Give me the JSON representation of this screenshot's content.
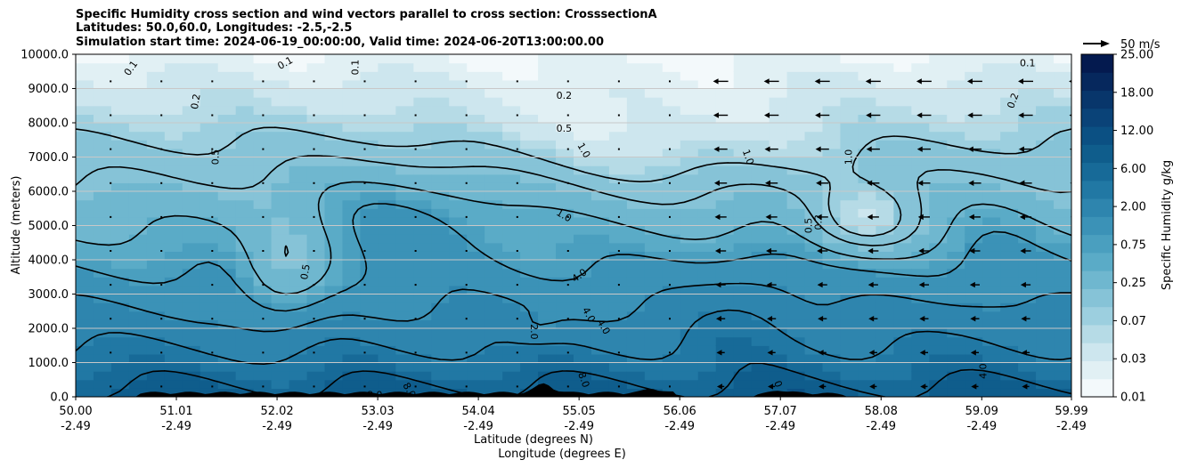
{
  "title": {
    "line1": "Specific Humidity cross section and wind vectors parallel to cross section: CrosssectionA",
    "line2": "Latitudes: 50.0,60.0, Longitudes: -2.5,-2.5",
    "line3": "Simulation start time: 2024-06-19_00:00:00, Valid time: 2024-06-20T13:00:00.00"
  },
  "chart_data": {
    "type": "heatmap",
    "xlabel_line1": "Latitude (degrees N)",
    "xlabel_line2": "Longitude (degrees E)",
    "ylabel": "Altitude (meters)",
    "xlim": [
      50.0,
      59.99
    ],
    "ylim": [
      0,
      10000
    ],
    "x_ticks": [
      {
        "lat": "50.00",
        "lon": "-2.49",
        "value": 50.0
      },
      {
        "lat": "51.01",
        "lon": "-2.49",
        "value": 51.01
      },
      {
        "lat": "52.02",
        "lon": "-2.49",
        "value": 52.02
      },
      {
        "lat": "53.03",
        "lon": "-2.49",
        "value": 53.03
      },
      {
        "lat": "54.04",
        "lon": "-2.49",
        "value": 54.04
      },
      {
        "lat": "55.05",
        "lon": "-2.49",
        "value": 55.05
      },
      {
        "lat": "56.06",
        "lon": "-2.49",
        "value": 56.06
      },
      {
        "lat": "57.07",
        "lon": "-2.49",
        "value": 57.07
      },
      {
        "lat": "58.08",
        "lon": "-2.49",
        "value": 58.08
      },
      {
        "lat": "59.09",
        "lon": "-2.49",
        "value": 59.09
      },
      {
        "lat": "59.99",
        "lon": "-2.49",
        "value": 59.99
      }
    ],
    "y_ticks": [
      "0.0",
      "1000.0",
      "2000.0",
      "3000.0",
      "4000.0",
      "5000.0",
      "6000.0",
      "7000.0",
      "8000.0",
      "9000.0",
      "10000.0"
    ],
    "y_tick_values": [
      0,
      1000,
      2000,
      3000,
      4000,
      5000,
      6000,
      7000,
      8000,
      9000,
      10000
    ],
    "grid": "horizontal",
    "colorbar": {
      "label": "Specific Humidity g/kg",
      "ticks": [
        "0.01",
        "0.03",
        "0.07",
        "0.25",
        "0.75",
        "2.00",
        "6.00",
        "12.00",
        "18.00",
        "25.00"
      ],
      "levels": [
        0.01,
        0.02,
        0.03,
        0.05,
        0.07,
        0.1,
        0.25,
        0.5,
        0.75,
        1.0,
        2.0,
        4.0,
        6.0,
        8.0,
        12.0,
        15.0,
        18.0,
        20.0,
        25.0
      ],
      "colors": [
        "#f3f9fb",
        "#e1f0f4",
        "#cde6ee",
        "#b6dbe6",
        "#9ccfdf",
        "#86c3d7",
        "#6fb7cf",
        "#5aabc7",
        "#4a9fbf",
        "#3b92b7",
        "#2e85ae",
        "#2178a4",
        "#176a98",
        "#0f5d8c",
        "#0b5083",
        "#0a4378",
        "#08366b",
        "#06285d",
        "#041a4f"
      ]
    },
    "contour_levels": [
      0.1,
      0.2,
      0.5,
      1.0,
      2.0,
      4.0,
      8.0
    ],
    "contour_labels": [
      {
        "text": "0.1",
        "lat": 50.55,
        "alt": 9600,
        "angle": -55
      },
      {
        "text": "0.1",
        "lat": 52.1,
        "alt": 9750,
        "angle": -30
      },
      {
        "text": "0.1",
        "lat": 52.8,
        "alt": 9620,
        "angle": -90
      },
      {
        "text": "0.2",
        "lat": 51.2,
        "alt": 8620,
        "angle": -80
      },
      {
        "text": "0.5",
        "lat": 51.4,
        "alt": 7000,
        "angle": -90
      },
      {
        "text": "0.5",
        "lat": 52.3,
        "alt": 3650,
        "angle": -80
      },
      {
        "text": "0.2",
        "lat": 54.9,
        "alt": 8800,
        "angle": 0
      },
      {
        "text": "0.5",
        "lat": 54.9,
        "alt": 7840,
        "angle": 0
      },
      {
        "text": "1.0",
        "lat": 55.1,
        "alt": 7200,
        "angle": 60
      },
      {
        "text": "1.0",
        "lat": 54.9,
        "alt": 5300,
        "angle": 30
      },
      {
        "text": "4.0",
        "lat": 55.05,
        "alt": 3550,
        "angle": -35
      },
      {
        "text": "4.0",
        "lat": 55.15,
        "alt": 2400,
        "angle": 60
      },
      {
        "text": "4.0",
        "lat": 55.3,
        "alt": 2050,
        "angle": 60
      },
      {
        "text": "2.0",
        "lat": 54.6,
        "alt": 1900,
        "angle": 90
      },
      {
        "text": "8.0",
        "lat": 55.1,
        "alt": 500,
        "angle": 70
      },
      {
        "text": "8.0",
        "lat": 53.35,
        "alt": 200,
        "angle": 60
      },
      {
        "text": "8.0",
        "lat": 53.0,
        "alt": 60,
        "angle": 0
      },
      {
        "text": "1.0",
        "lat": 56.75,
        "alt": 7000,
        "angle": 70
      },
      {
        "text": "1.0",
        "lat": 57.75,
        "alt": 7000,
        "angle": -90
      },
      {
        "text": "0.5",
        "lat": 57.35,
        "alt": 5000,
        "angle": -90
      },
      {
        "text": "0.2",
        "lat": 57.45,
        "alt": 5100,
        "angle": -90
      },
      {
        "text": "0.2",
        "lat": 59.4,
        "alt": 8650,
        "angle": -70
      },
      {
        "text": "0.1",
        "lat": 59.55,
        "alt": 9750,
        "angle": 0
      },
      {
        "text": "4.0",
        "lat": 59.1,
        "alt": 750,
        "angle": -90
      },
      {
        "text": "0",
        "lat": 57.05,
        "alt": 380,
        "angle": 70
      }
    ],
    "wind_vectors": {
      "reference_label": "50 m/s",
      "reference_speed_ms": 50,
      "direction": "southward (toward lower latitude) strongest north of 56.5N at upper levels",
      "magnitude": "light south of 56N, moderate to 59.99N"
    },
    "terrain": {
      "color": "#000000",
      "peak_lat": 54.7,
      "peak_alt_m": 600
    }
  }
}
